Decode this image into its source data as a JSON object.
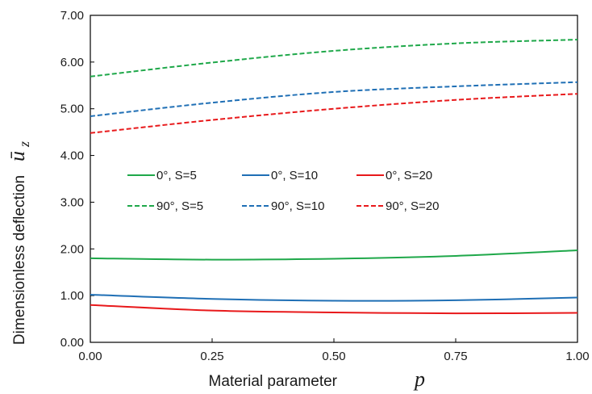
{
  "chart_data": {
    "type": "line",
    "xlabel": "Material parameter",
    "xlabel_symbol": "p",
    "ylabel": "Dimensionless deflection",
    "ylabel_symbol_base": "ū",
    "ylabel_symbol_sub": "z",
    "xlim": [
      0,
      1
    ],
    "ylim": [
      0,
      7
    ],
    "x_ticks": [
      0,
      0.25,
      0.5,
      0.75,
      1.0
    ],
    "x_tick_labels": [
      "0.00",
      "0.25",
      "0.50",
      "0.75",
      "1.00"
    ],
    "y_ticks": [
      0,
      1,
      2,
      3,
      4,
      5,
      6,
      7
    ],
    "y_tick_labels": [
      "0.00",
      "1.00",
      "2.00",
      "3.00",
      "4.00",
      "5.00",
      "6.00",
      "7.00"
    ],
    "grid": false,
    "legend_placement": "center-left",
    "x": [
      0,
      0.25,
      0.5,
      0.75,
      1.0
    ],
    "series": [
      {
        "name": "0°, S=5",
        "color": "#1fa84a",
        "dash": "solid",
        "values": [
          1.8,
          1.77,
          1.79,
          1.85,
          1.97
        ]
      },
      {
        "name": "0°, S=10",
        "color": "#1f6fb5",
        "dash": "solid",
        "values": [
          1.02,
          0.93,
          0.89,
          0.9,
          0.96
        ]
      },
      {
        "name": "0°, S=20",
        "color": "#e8191b",
        "dash": "solid",
        "values": [
          0.8,
          0.68,
          0.64,
          0.62,
          0.63
        ]
      },
      {
        "name": "90°, S=5",
        "color": "#1fa84a",
        "dash": "dashed",
        "values": [
          5.69,
          5.99,
          6.24,
          6.4,
          6.48
        ]
      },
      {
        "name": "90°, S=10",
        "color": "#1f6fb5",
        "dash": "dashed",
        "values": [
          4.84,
          5.13,
          5.36,
          5.48,
          5.57
        ]
      },
      {
        "name": "90°, S=20",
        "color": "#e8191b",
        "dash": "dashed",
        "values": [
          4.48,
          4.76,
          5.0,
          5.19,
          5.32
        ]
      }
    ]
  }
}
